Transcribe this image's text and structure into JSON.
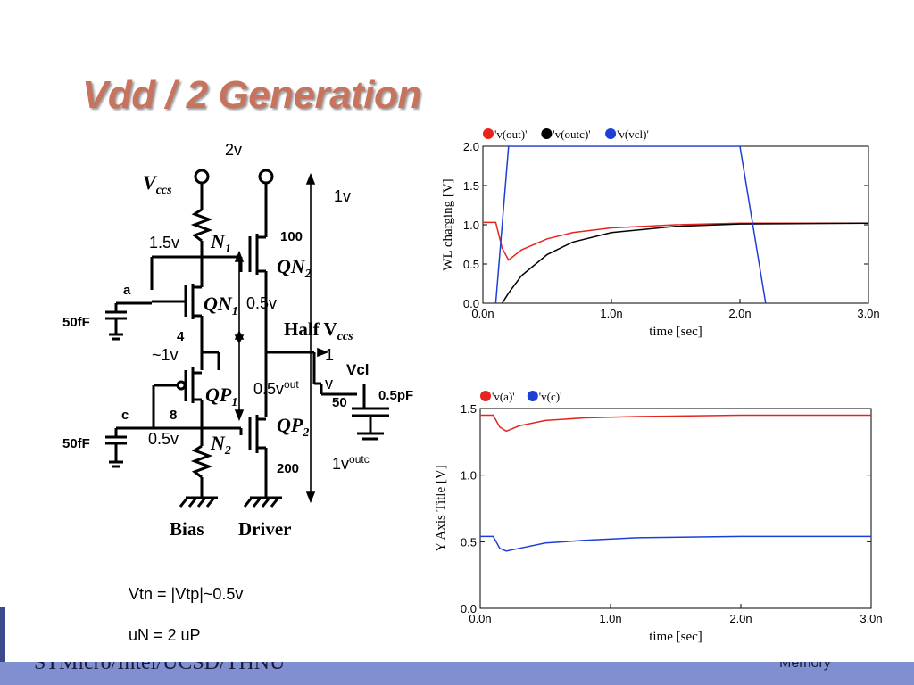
{
  "slide": {
    "title": "Vdd / 2 Generation",
    "footer_left": "STMicro/Intel/UCSD/THNU",
    "footer_right": "Memory",
    "notes": [
      "Vtn =  |Vtp|~0.5v",
      "uN = 2 uP"
    ]
  },
  "schematic": {
    "labels": {
      "vccs": "V",
      "vccs_sub": "ccs",
      "n1": "N",
      "n1_sub": "1",
      "qn1": "QN",
      "qn1_sub": "1",
      "qn2": "QN",
      "qn2_sub": "2",
      "qp1": "QP",
      "qp1_sub": "1",
      "qp2": "QP",
      "qp2_sub": "2",
      "n2": "N",
      "n2_sub": "2",
      "half_vccs": "Half V",
      "half_vccs_sub": "ccs",
      "a": "a",
      "c": "c",
      "cap_a": "50fF",
      "cap_c": "50fF",
      "size_qn1": "4",
      "size_qp1": "8",
      "size_qn2": "100",
      "size_qp2": "200",
      "res": "50",
      "vcl": "Vcl",
      "load_cap": "0.5pF",
      "bias": "Bias",
      "driver": "Driver"
    },
    "annotations": {
      "v2": "2v",
      "v1_top": "1v",
      "v15": "1.5v",
      "v05_mid": "0.5v",
      "v1_approx": "~1v",
      "v1_out": "1",
      "v_out": "v",
      "out_sup": "out",
      "v05_out": "0.5v",
      "v05_low": "0.5v",
      "v1_outc": "1v",
      "outc_sup": "outc"
    }
  },
  "chart_data": [
    {
      "type": "line",
      "title": "",
      "xlabel": "time  [sec]",
      "ylabel": "WL charging  [V]",
      "xlim": [
        0,
        3.0
      ],
      "ylim": [
        0,
        2.0
      ],
      "xticks": [
        "0.0n",
        "1.0n",
        "2.0n",
        "3.0n"
      ],
      "yticks": [
        "0.0",
        "0.5",
        "1.0",
        "1.5",
        "2.0"
      ],
      "legend": [
        "'v(out)'",
        "'v(outc)'",
        "'v(vcl)'"
      ],
      "legend_position": "top-left",
      "series": [
        {
          "name": "'v(out)'",
          "color": "#e8231e",
          "x": [
            0,
            0.1,
            0.15,
            0.2,
            0.3,
            0.5,
            0.7,
            1.0,
            1.5,
            2.0,
            3.0
          ],
          "y": [
            1.03,
            1.03,
            0.7,
            0.55,
            0.68,
            0.82,
            0.9,
            0.96,
            1.0,
            1.02,
            1.02
          ]
        },
        {
          "name": "'v(outc)'",
          "color": "#000000",
          "x": [
            0.15,
            0.2,
            0.3,
            0.5,
            0.7,
            1.0,
            1.5,
            2.0,
            3.0
          ],
          "y": [
            0.0,
            0.13,
            0.35,
            0.62,
            0.78,
            0.9,
            0.98,
            1.01,
            1.02
          ]
        },
        {
          "name": "'v(vcl)'",
          "color": "#1c3fd6",
          "x": [
            0.1,
            0.2,
            2.0,
            2.2
          ],
          "y": [
            0.0,
            2.0,
            2.0,
            0.0
          ]
        }
      ]
    },
    {
      "type": "line",
      "title": "",
      "xlabel": "time  [sec]",
      "ylabel": "Y Axis Title  [V]",
      "xlim": [
        0,
        3.0
      ],
      "ylim": [
        0,
        1.5
      ],
      "xticks": [
        "0.0n",
        "1.0n",
        "2.0n",
        "3.0n"
      ],
      "yticks": [
        "0.0",
        "0.5",
        "1.0",
        "1.5"
      ],
      "legend": [
        "'v(a)'",
        "'v(c)'"
      ],
      "legend_position": "top-left",
      "series": [
        {
          "name": "'v(a)'",
          "color": "#e8231e",
          "x": [
            0,
            0.1,
            0.15,
            0.2,
            0.3,
            0.5,
            0.8,
            1.2,
            2.0,
            3.0
          ],
          "y": [
            1.45,
            1.45,
            1.36,
            1.33,
            1.37,
            1.41,
            1.43,
            1.44,
            1.45,
            1.45
          ]
        },
        {
          "name": "'v(c)'",
          "color": "#1c3fd6",
          "x": [
            0,
            0.1,
            0.15,
            0.2,
            0.3,
            0.5,
            0.8,
            1.2,
            2.0,
            3.0
          ],
          "y": [
            0.54,
            0.54,
            0.45,
            0.43,
            0.45,
            0.49,
            0.51,
            0.53,
            0.54,
            0.54
          ]
        }
      ]
    }
  ]
}
